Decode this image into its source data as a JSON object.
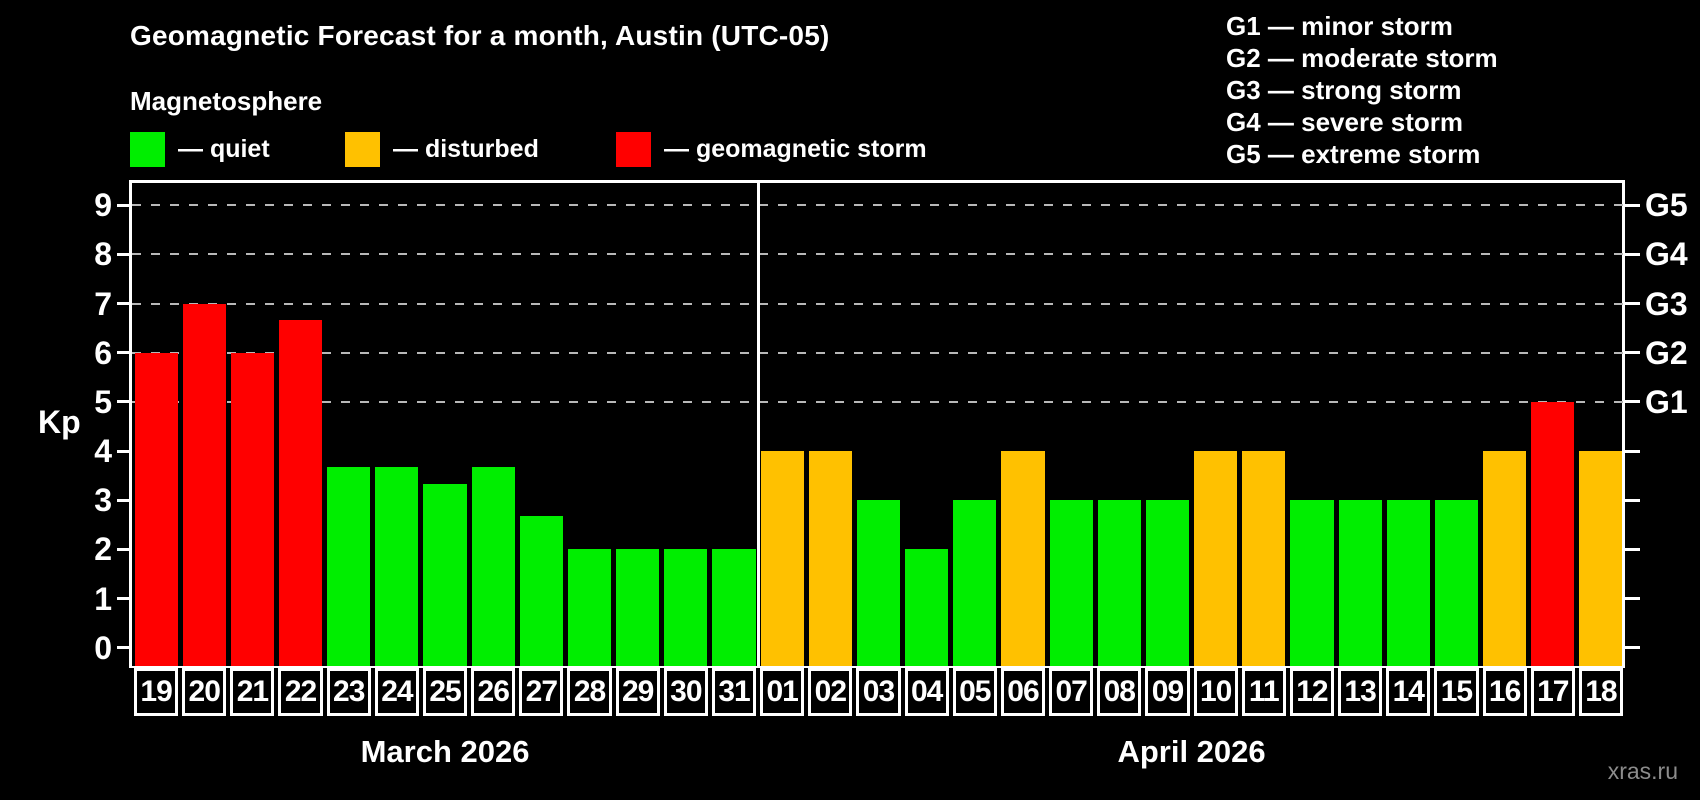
{
  "title": "Geomagnetic Forecast for a month, Austin (UTC-05)",
  "legend": {
    "heading": "Magnetosphere",
    "items": [
      {
        "key": "quiet",
        "label": "— quiet",
        "color": "#00ee00",
        "x_offset": 0
      },
      {
        "key": "disturbed",
        "label": "— disturbed",
        "color": "#ffc100",
        "x_offset": 215
      },
      {
        "key": "storm",
        "label": "— geomagnetic storm",
        "color": "#ff0000",
        "x_offset": 486
      }
    ]
  },
  "g_scale_legend": [
    "G1 — minor storm",
    "G2 — moderate storm",
    "G3 — strong storm",
    "G4 — severe storm",
    "G5 — extreme storm"
  ],
  "watermark": "xras.ru",
  "chart_data": {
    "type": "bar",
    "ylabel": "Kp",
    "ylim": [
      -0.37,
      9.45
    ],
    "y_ticks": [
      0,
      1,
      2,
      3,
      4,
      5,
      6,
      7,
      8,
      9
    ],
    "gridlines_at": [
      5,
      6,
      7,
      8,
      9
    ],
    "grid": true,
    "right_axis": [
      {
        "label": "G1",
        "kp": 5
      },
      {
        "label": "G2",
        "kp": 6
      },
      {
        "label": "G3",
        "kp": 7
      },
      {
        "label": "G4",
        "kp": 8
      },
      {
        "label": "G5",
        "kp": 9
      }
    ],
    "colors": {
      "quiet": "#00ee00",
      "disturbed": "#ffc100",
      "storm": "#ff0000"
    },
    "groups": [
      {
        "label": "March 2026",
        "days": [
          {
            "date": "19",
            "kp": 6.0,
            "level": "storm"
          },
          {
            "date": "20",
            "kp": 7.0,
            "level": "storm"
          },
          {
            "date": "21",
            "kp": 6.0,
            "level": "storm"
          },
          {
            "date": "22",
            "kp": 6.67,
            "level": "storm"
          },
          {
            "date": "23",
            "kp": 3.67,
            "level": "quiet"
          },
          {
            "date": "24",
            "kp": 3.67,
            "level": "quiet"
          },
          {
            "date": "25",
            "kp": 3.33,
            "level": "quiet"
          },
          {
            "date": "26",
            "kp": 3.67,
            "level": "quiet"
          },
          {
            "date": "27",
            "kp": 2.67,
            "level": "quiet"
          },
          {
            "date": "28",
            "kp": 2.0,
            "level": "quiet"
          },
          {
            "date": "29",
            "kp": 2.0,
            "level": "quiet"
          },
          {
            "date": "30",
            "kp": 2.0,
            "level": "quiet"
          },
          {
            "date": "31",
            "kp": 2.0,
            "level": "quiet"
          }
        ]
      },
      {
        "label": "April 2026",
        "days": [
          {
            "date": "01",
            "kp": 4.0,
            "level": "disturbed"
          },
          {
            "date": "02",
            "kp": 4.0,
            "level": "disturbed"
          },
          {
            "date": "03",
            "kp": 3.0,
            "level": "quiet"
          },
          {
            "date": "04",
            "kp": 2.0,
            "level": "quiet"
          },
          {
            "date": "05",
            "kp": 3.0,
            "level": "quiet"
          },
          {
            "date": "06",
            "kp": 4.0,
            "level": "disturbed"
          },
          {
            "date": "07",
            "kp": 3.0,
            "level": "quiet"
          },
          {
            "date": "08",
            "kp": 3.0,
            "level": "quiet"
          },
          {
            "date": "09",
            "kp": 3.0,
            "level": "quiet"
          },
          {
            "date": "10",
            "kp": 4.0,
            "level": "disturbed"
          },
          {
            "date": "11",
            "kp": 4.0,
            "level": "disturbed"
          },
          {
            "date": "12",
            "kp": 3.0,
            "level": "quiet"
          },
          {
            "date": "13",
            "kp": 3.0,
            "level": "quiet"
          },
          {
            "date": "14",
            "kp": 3.0,
            "level": "quiet"
          },
          {
            "date": "15",
            "kp": 3.0,
            "level": "quiet"
          },
          {
            "date": "16",
            "kp": 4.0,
            "level": "disturbed"
          },
          {
            "date": "17",
            "kp": 5.0,
            "level": "storm"
          },
          {
            "date": "18",
            "kp": 4.0,
            "level": "disturbed"
          }
        ]
      }
    ]
  }
}
